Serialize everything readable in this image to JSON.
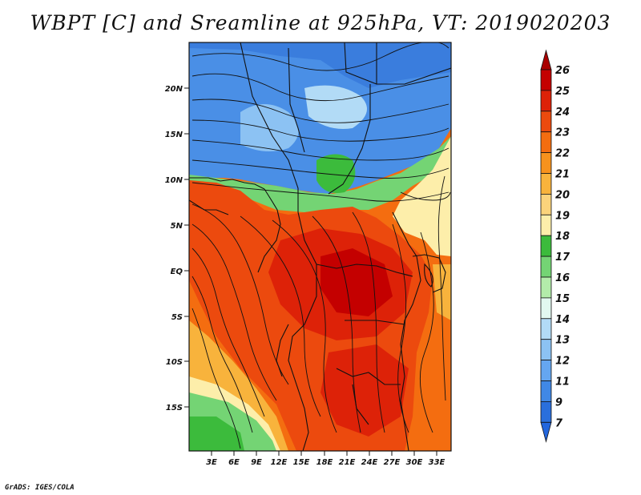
{
  "title": "WBPT [C] and Sreamline at 925hPa, VT: 2019020203",
  "footer": "GrADS: IGES/COLA",
  "map": {
    "variable": "Wet-bulb potential temperature",
    "unit": "C",
    "level": "925hPa",
    "lat_labels": [
      "20N",
      "15N",
      "10N",
      "5N",
      "EQ",
      "5S",
      "10S",
      "15S"
    ],
    "lon_labels": [
      "3E",
      "6E",
      "9E",
      "12E",
      "15E",
      "18E",
      "21E",
      "24E",
      "27E",
      "30E",
      "33E"
    ]
  },
  "colorbar": {
    "labels": [
      "26",
      "25",
      "24",
      "23",
      "22",
      "21",
      "20",
      "19",
      "18",
      "17",
      "16",
      "15",
      "14",
      "13",
      "12",
      "11",
      "9",
      "7"
    ],
    "colors": [
      "#c40000",
      "#dd2208",
      "#ec4a0e",
      "#f46d10",
      "#f7921d",
      "#f8b33c",
      "#fbd37b",
      "#fdeeaa",
      "#3cbb3c",
      "#74d474",
      "#b3ecaa",
      "#e2f8f0",
      "#b2dbf6",
      "#8cc2f3",
      "#65a6f0",
      "#4088e6",
      "#2a6fdc"
    ],
    "top_color": "#aa0000",
    "bottom_color": "#2266dd"
  }
}
